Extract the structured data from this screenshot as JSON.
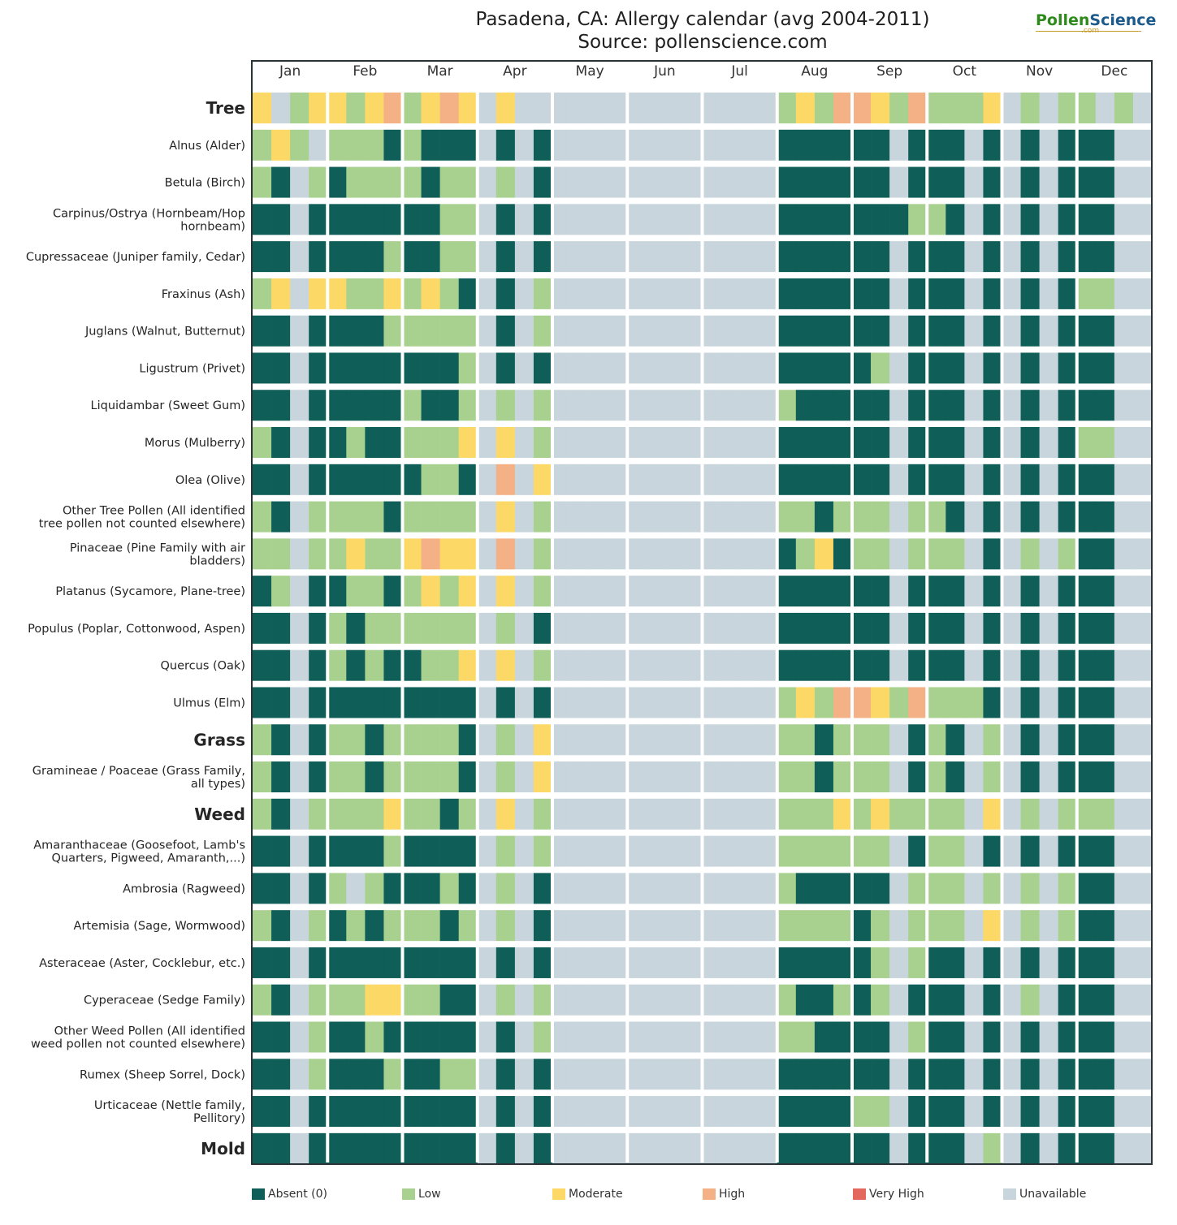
{
  "title_line1": "Pasadena, CA: Allergy calendar (avg 2004-2011)",
  "title_line2": "Source: pollenscience.com",
  "logo": {
    "part1": "Pollen",
    "part2": "Science",
    "sub": ".com"
  },
  "colors": {
    "A": "#0f5e57",
    "L": "#a8d18f",
    "M": "#fcd866",
    "H": "#f3b185",
    "V": "#e3695e",
    "U": "#c8d5dc"
  },
  "legend": [
    {
      "key": "A",
      "label": "Absent (0)"
    },
    {
      "key": "L",
      "label": "Low"
    },
    {
      "key": "M",
      "label": "Moderate"
    },
    {
      "key": "H",
      "label": "High"
    },
    {
      "key": "V",
      "label": "Very High"
    },
    {
      "key": "U",
      "label": "Unavailable"
    }
  ],
  "chart_data": {
    "type": "heatmap",
    "months": [
      "Jan",
      "Feb",
      "Mar",
      "Apr",
      "May",
      "Jun",
      "Jul",
      "Aug",
      "Sep",
      "Oct",
      "Nov",
      "Dec"
    ],
    "level_scale": {
      "A": "Absent (0)",
      "L": "Low",
      "M": "Moderate",
      "H": "High",
      "V": "Very High",
      "U": "Unavailable"
    },
    "weeks_per_month": 4,
    "rows": [
      {
        "label": "Tree",
        "category": true,
        "weeks": [
          "MULM",
          "MLMH",
          "LMHM",
          "UMUU",
          "UUUU",
          "UUUU",
          "UUUU",
          "LMLH",
          "HMLH",
          "LLLM",
          "ULUL",
          "LULU"
        ]
      },
      {
        "label": "Alnus (Alder)",
        "category": false,
        "weeks": [
          "LMLU",
          "LLLA",
          "LAAA",
          "UAUA",
          "UUUU",
          "UUUU",
          "UUUU",
          "AAAA",
          "AAUA",
          "AAUA",
          "UAUA",
          "AAUU"
        ]
      },
      {
        "label": "Betula (Birch)",
        "category": false,
        "weeks": [
          "LAUL",
          "ALLL",
          "LALL",
          "ULUA",
          "UUUU",
          "UUUU",
          "UUUU",
          "AAAA",
          "AAUA",
          "AAUA",
          "UAUA",
          "AAUU"
        ]
      },
      {
        "label": "Carpinus/Ostrya (Hornbeam/Hop hornbeam)",
        "category": false,
        "weeks": [
          "AAUA",
          "AAAA",
          "AALL",
          "UAUA",
          "UUUU",
          "UUUU",
          "UUUU",
          "AAAA",
          "AAAL",
          "LAUA",
          "UAUA",
          "AAUU"
        ]
      },
      {
        "label": "Cupressaceae (Juniper family, Cedar)",
        "category": false,
        "weeks": [
          "AAUA",
          "AAAL",
          "AALL",
          "UAUA",
          "UUUU",
          "UUUU",
          "UUUU",
          "AAAA",
          "AAUA",
          "AAUA",
          "UAUA",
          "AAUU"
        ]
      },
      {
        "label": "Fraxinus (Ash)",
        "category": false,
        "weeks": [
          "LMUM",
          "MLLM",
          "LMLA",
          "UAUL",
          "UUUU",
          "UUUU",
          "UUUU",
          "AAAA",
          "AAUA",
          "AAUA",
          "UAUA",
          "LLUU"
        ]
      },
      {
        "label": "Juglans (Walnut, Butternut)",
        "category": false,
        "weeks": [
          "AAUA",
          "AAAL",
          "LLLL",
          "UAUL",
          "UUUU",
          "UUUU",
          "UUUU",
          "AAAA",
          "AAUA",
          "AAUA",
          "UAUA",
          "AAUU"
        ]
      },
      {
        "label": "Ligustrum (Privet)",
        "category": false,
        "weeks": [
          "AAUA",
          "AAAA",
          "AAAL",
          "UAUA",
          "UUUU",
          "UUUU",
          "UUUU",
          "AAAA",
          "ALUA",
          "AAUA",
          "UAUA",
          "AAUU"
        ]
      },
      {
        "label": "Liquidambar (Sweet Gum)",
        "category": false,
        "weeks": [
          "AAUA",
          "AAAA",
          "LAAL",
          "ULUL",
          "UUUU",
          "UUUU",
          "UUUU",
          "LAAA",
          "AAUA",
          "AAUA",
          "UAUA",
          "AAUU"
        ]
      },
      {
        "label": "Morus (Mulberry)",
        "category": false,
        "weeks": [
          "LAUA",
          "ALAA",
          "LLLM",
          "UMUL",
          "UUUU",
          "UUUU",
          "UUUU",
          "AAAA",
          "AAUA",
          "AAUA",
          "UAUA",
          "LLUU"
        ]
      },
      {
        "label": "Olea (Olive)",
        "category": false,
        "weeks": [
          "AAUA",
          "AAAA",
          "ALLA",
          "UHUM",
          "UUUU",
          "UUUU",
          "UUUU",
          "AAAA",
          "AAUA",
          "AAUA",
          "UAUA",
          "AAUU"
        ]
      },
      {
        "label": "Other Tree Pollen (All identified tree pollen not counted elsewhere)",
        "category": false,
        "weeks": [
          "LAUL",
          "LLLA",
          "LLLL",
          "UMUL",
          "UUUU",
          "UUUU",
          "UUUU",
          "LLAL",
          "LLUL",
          "LAUA",
          "UAUA",
          "AAUU"
        ]
      },
      {
        "label": "Pinaceae (Pine Family with air bladders)",
        "category": false,
        "weeks": [
          "LLUL",
          "LMLL",
          "MHMM",
          "UHUL",
          "UUUU",
          "UUUU",
          "UUUU",
          "ALMA",
          "LLUL",
          "LLUA",
          "ULUL",
          "AAUU"
        ]
      },
      {
        "label": "Platanus (Sycamore, Plane-tree)",
        "category": false,
        "weeks": [
          "ALUA",
          "ALLA",
          "LMLM",
          "UMUL",
          "UUUU",
          "UUUU",
          "UUUU",
          "AAAA",
          "AAUA",
          "AAUA",
          "UAUA",
          "AAUU"
        ]
      },
      {
        "label": "Populus (Poplar, Cottonwood, Aspen)",
        "category": false,
        "weeks": [
          "AAUA",
          "LALL",
          "LLLL",
          "ULUA",
          "UUUU",
          "UUUU",
          "UUUU",
          "AAAA",
          "AAUA",
          "AAUA",
          "UAUA",
          "AAUU"
        ]
      },
      {
        "label": "Quercus (Oak)",
        "category": false,
        "weeks": [
          "AAUA",
          "LALA",
          "ALLM",
          "UMUL",
          "UUUU",
          "UUUU",
          "UUUU",
          "AAAA",
          "AAUA",
          "AAUA",
          "UAUA",
          "AAUU"
        ]
      },
      {
        "label": "Ulmus (Elm)",
        "category": false,
        "weeks": [
          "AAUA",
          "AAAA",
          "AAAA",
          "UAUA",
          "UUUU",
          "UUUU",
          "UUUU",
          "LMLH",
          "HMLH",
          "LLLA",
          "UAUA",
          "AAUU"
        ]
      },
      {
        "label": "Grass",
        "category": true,
        "weeks": [
          "LAUA",
          "LLAL",
          "LLLA",
          "ULUM",
          "UUUU",
          "UUUU",
          "UUUU",
          "LLAL",
          "LLUA",
          "LAUL",
          "UAUA",
          "AAUU"
        ]
      },
      {
        "label": "Gramineae / Poaceae (Grass Family, all types)",
        "category": false,
        "weeks": [
          "LAUA",
          "LLAL",
          "LLLA",
          "ULUM",
          "UUUU",
          "UUUU",
          "UUUU",
          "LLAL",
          "LLUA",
          "LAUL",
          "UAUA",
          "AAUU"
        ]
      },
      {
        "label": "Weed",
        "category": true,
        "weeks": [
          "LAUL",
          "LLLM",
          "LLAL",
          "UMUL",
          "UUUU",
          "UUUU",
          "UUUU",
          "LLLM",
          "LMLL",
          "LLUM",
          "ULUL",
          "LLUU"
        ]
      },
      {
        "label": "Amaranthaceae (Goosefoot, Lamb's Quarters, Pigweed, Amaranth,...)",
        "category": false,
        "weeks": [
          "AAUA",
          "AAAL",
          "AAAA",
          "ULUL",
          "UUUU",
          "UUUU",
          "UUUU",
          "LLLL",
          "LLUA",
          "LLUA",
          "UAUA",
          "AAUU"
        ]
      },
      {
        "label": "Ambrosia (Ragweed)",
        "category": false,
        "weeks": [
          "AAUA",
          "LULA",
          "AALA",
          "ULUA",
          "UUUU",
          "UUUU",
          "UUUU",
          "LAAA",
          "AAUL",
          "LLUL",
          "ULUL",
          "AAUU"
        ]
      },
      {
        "label": "Artemisia (Sage, Wormwood)",
        "category": false,
        "weeks": [
          "LAUL",
          "ALAL",
          "LLAL",
          "ULUA",
          "UUUU",
          "UUUU",
          "UUUU",
          "LLLL",
          "ALUL",
          "LLUM",
          "ULUL",
          "AAUU"
        ]
      },
      {
        "label": "Asteraceae (Aster, Cocklebur, etc.)",
        "category": false,
        "weeks": [
          "AAUA",
          "AAAA",
          "AAAA",
          "UAUA",
          "UUUU",
          "UUUU",
          "UUUU",
          "AAAA",
          "ALUL",
          "AAUA",
          "UAUA",
          "AAUU"
        ]
      },
      {
        "label": "Cyperaceae (Sedge Family)",
        "category": false,
        "weeks": [
          "LAUL",
          "LLMM",
          "LLAA",
          "ULUL",
          "UUUU",
          "UUUU",
          "UUUU",
          "LAAL",
          "ALUA",
          "AAUA",
          "ULUA",
          "AAUU"
        ]
      },
      {
        "label": "Other Weed Pollen (All identified weed pollen not counted elsewhere)",
        "category": false,
        "weeks": [
          "AAUL",
          "AALA",
          "AAAA",
          "UAUL",
          "UUUU",
          "UUUU",
          "UUUU",
          "LLAA",
          "AAUL",
          "AAUA",
          "UAUA",
          "AAUU"
        ]
      },
      {
        "label": "Rumex (Sheep Sorrel, Dock)",
        "category": false,
        "weeks": [
          "AAUL",
          "AAAL",
          "AALL",
          "UAUA",
          "UUUU",
          "UUUU",
          "UUUU",
          "AAAA",
          "AAUA",
          "AAUA",
          "UAUA",
          "AAUU"
        ]
      },
      {
        "label": "Urticaceae (Nettle family, Pellitory)",
        "category": false,
        "weeks": [
          "AAUA",
          "AAAA",
          "AAAA",
          "UAUA",
          "UUUU",
          "UUUU",
          "UUUU",
          "AAAA",
          "LLUA",
          "AAUA",
          "UAUA",
          "AAUU"
        ]
      },
      {
        "label": "Mold",
        "category": true,
        "weeks": [
          "AAUA",
          "AAAA",
          "AAAA",
          "UAUA",
          "UUUU",
          "UUUU",
          "UUUU",
          "AAAA",
          "AAUA",
          "AAUL",
          "UAUA",
          "AAUU"
        ]
      }
    ]
  }
}
